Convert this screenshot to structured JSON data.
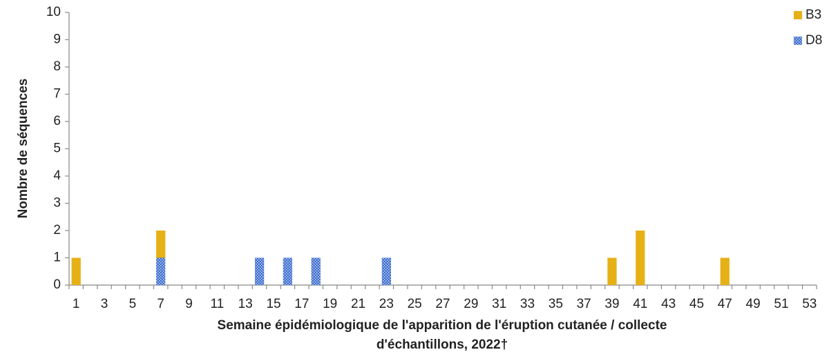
{
  "chart_data": {
    "type": "stacked_bar",
    "ylabel": "Nombre de séquences",
    "xlabel": [
      "Semaine épidémiologique de l'apparition de l'éruption cutanée / collecte",
      "d'échantillons, 2022†"
    ],
    "categories": [
      "1",
      null,
      "3",
      null,
      "5",
      null,
      "7",
      null,
      "9",
      null,
      "11",
      null,
      "13",
      null,
      "15",
      null,
      "17",
      null,
      "19",
      null,
      "21",
      null,
      "23",
      null,
      "25",
      null,
      "27",
      null,
      "29",
      null,
      "31",
      null,
      "33",
      null,
      "35",
      null,
      "37",
      null,
      "39",
      null,
      "41",
      null,
      "43",
      null,
      "45",
      null,
      "47",
      null,
      "49",
      null,
      "51",
      null,
      "53"
    ],
    "series": [
      {
        "name": "B3",
        "color": "#e6b117",
        "values": [
          1,
          0,
          0,
          0,
          0,
          0,
          1,
          0,
          0,
          0,
          0,
          0,
          0,
          0,
          0,
          0,
          0,
          0,
          0,
          0,
          0,
          0,
          0,
          0,
          0,
          0,
          0,
          0,
          0,
          0,
          0,
          0,
          0,
          0,
          0,
          0,
          0,
          0,
          1,
          0,
          2,
          0,
          0,
          0,
          0,
          0,
          1,
          0,
          0,
          0,
          0,
          0,
          0
        ]
      },
      {
        "name": "D8",
        "color": "#3f6fcf",
        "values": [
          0,
          0,
          0,
          0,
          0,
          0,
          1,
          0,
          0,
          0,
          0,
          0,
          0,
          1,
          0,
          1,
          0,
          1,
          0,
          0,
          0,
          0,
          1,
          0,
          0,
          0,
          0,
          0,
          0,
          0,
          0,
          0,
          0,
          0,
          0,
          0,
          0,
          0,
          0,
          0,
          0,
          0,
          0,
          0,
          0,
          0,
          0,
          0,
          0,
          0,
          0,
          0,
          0
        ]
      }
    ],
    "ylim": [
      0,
      10
    ],
    "yticks": [
      0,
      1,
      2,
      3,
      4,
      5,
      6,
      7,
      8,
      9,
      10
    ],
    "grid": false,
    "legend": "top-right"
  }
}
